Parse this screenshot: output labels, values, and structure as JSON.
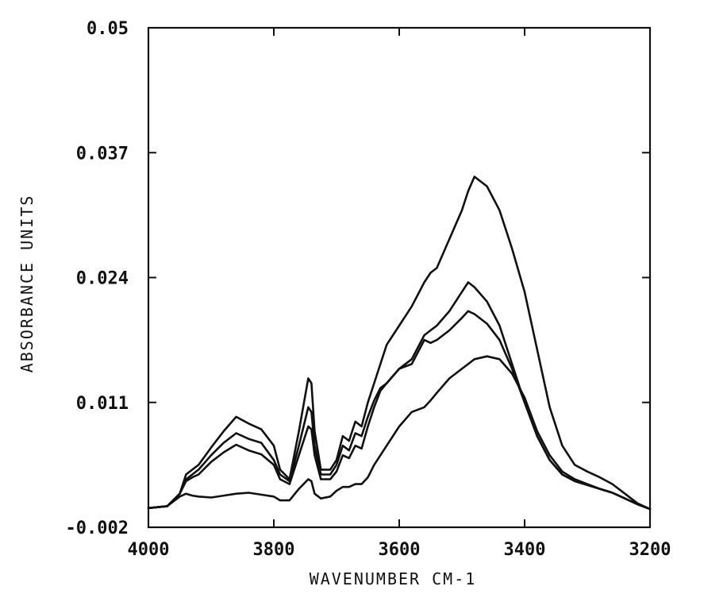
{
  "chart_data": {
    "type": "line",
    "title": "",
    "xlabel": "WAVENUMBER CM-1",
    "ylabel": "ABSORBANCE UNITS",
    "xlim": [
      4000,
      3200
    ],
    "ylim": [
      -0.002,
      0.05
    ],
    "x_reversed": true,
    "x_ticks": [
      4000,
      3800,
      3600,
      3400,
      3200
    ],
    "x_tick_labels": [
      "4000",
      "3800",
      "3600",
      "3400",
      "3200"
    ],
    "y_ticks": [
      -0.002,
      0.011,
      0.024,
      0.037,
      0.05
    ],
    "y_tick_labels": [
      "-0.002",
      "0.011",
      "0.024",
      "0.037",
      "0.05"
    ],
    "grid": false,
    "legend": "none",
    "series": [
      {
        "x": [
          4000,
          3970,
          3950,
          3940,
          3930,
          3920,
          3900,
          3880,
          3860,
          3840,
          3820,
          3800,
          3790,
          3775,
          3760,
          3745,
          3740,
          3735,
          3725,
          3710,
          3700,
          3690,
          3680,
          3670,
          3660,
          3650,
          3640,
          3630,
          3620,
          3600,
          3580,
          3560,
          3550,
          3540,
          3520,
          3500,
          3490,
          3480,
          3460,
          3440,
          3420,
          3400,
          3380,
          3360,
          3340,
          3320,
          3300,
          3280,
          3260,
          3240,
          3220,
          3200
        ],
        "y": [
          0.0,
          0.0002,
          0.0015,
          0.0035,
          0.004,
          0.0045,
          0.0063,
          0.008,
          0.0095,
          0.0088,
          0.0082,
          0.0065,
          0.004,
          0.003,
          0.008,
          0.0135,
          0.013,
          0.008,
          0.004,
          0.004,
          0.005,
          0.0075,
          0.007,
          0.009,
          0.0085,
          0.011,
          0.013,
          0.015,
          0.017,
          0.019,
          0.021,
          0.0235,
          0.0245,
          0.025,
          0.028,
          0.031,
          0.033,
          0.0345,
          0.0335,
          0.031,
          0.027,
          0.0225,
          0.0165,
          0.0105,
          0.0065,
          0.0045,
          0.0038,
          0.0032,
          0.0025,
          0.0015,
          0.0005,
          -0.0001
        ]
      },
      {
        "x": [
          4000,
          3970,
          3950,
          3940,
          3930,
          3920,
          3900,
          3880,
          3860,
          3840,
          3820,
          3800,
          3790,
          3775,
          3760,
          3745,
          3740,
          3735,
          3725,
          3710,
          3700,
          3690,
          3680,
          3670,
          3660,
          3650,
          3640,
          3630,
          3620,
          3600,
          3580,
          3560,
          3550,
          3540,
          3520,
          3500,
          3490,
          3480,
          3460,
          3440,
          3420,
          3400,
          3380,
          3360,
          3340,
          3320,
          3300,
          3280,
          3260,
          3240,
          3220,
          3200
        ],
        "y": [
          0.0,
          0.0002,
          0.0015,
          0.003,
          0.0035,
          0.004,
          0.0055,
          0.0068,
          0.0078,
          0.0072,
          0.0068,
          0.005,
          0.0035,
          0.0028,
          0.0065,
          0.0105,
          0.01,
          0.0065,
          0.0035,
          0.0035,
          0.0045,
          0.0065,
          0.006,
          0.0078,
          0.0075,
          0.0095,
          0.0112,
          0.0125,
          0.013,
          0.0145,
          0.0155,
          0.018,
          0.0185,
          0.019,
          0.0205,
          0.0225,
          0.0235,
          0.023,
          0.0215,
          0.019,
          0.015,
          0.011,
          0.0075,
          0.005,
          0.0035,
          0.0028,
          0.0024,
          0.002,
          0.0016,
          0.001,
          0.0004,
          -0.0001
        ]
      },
      {
        "x": [
          4000,
          3970,
          3950,
          3940,
          3930,
          3920,
          3900,
          3880,
          3860,
          3840,
          3820,
          3800,
          3790,
          3775,
          3760,
          3745,
          3740,
          3735,
          3725,
          3710,
          3700,
          3690,
          3680,
          3670,
          3660,
          3650,
          3640,
          3630,
          3620,
          3600,
          3580,
          3560,
          3550,
          3540,
          3520,
          3500,
          3490,
          3480,
          3460,
          3440,
          3420,
          3400,
          3380,
          3360,
          3340,
          3320,
          3300,
          3280,
          3260,
          3240,
          3220,
          3200
        ],
        "y": [
          0.0,
          0.0002,
          0.0015,
          0.0028,
          0.0032,
          0.0035,
          0.0048,
          0.0058,
          0.0066,
          0.006,
          0.0056,
          0.0045,
          0.003,
          0.0025,
          0.0055,
          0.0085,
          0.0082,
          0.0055,
          0.003,
          0.003,
          0.0038,
          0.0055,
          0.0052,
          0.0065,
          0.0062,
          0.0085,
          0.0105,
          0.0122,
          0.013,
          0.0145,
          0.015,
          0.0175,
          0.0172,
          0.0175,
          0.0185,
          0.0198,
          0.0205,
          0.0202,
          0.0192,
          0.0175,
          0.0145,
          0.011,
          0.0075,
          0.005,
          0.0035,
          0.0028,
          0.0024,
          0.002,
          0.0016,
          0.001,
          0.0004,
          -0.0001
        ]
      },
      {
        "x": [
          4000,
          3970,
          3950,
          3940,
          3930,
          3920,
          3900,
          3880,
          3860,
          3840,
          3820,
          3800,
          3790,
          3775,
          3760,
          3745,
          3740,
          3735,
          3725,
          3710,
          3700,
          3690,
          3680,
          3670,
          3660,
          3650,
          3640,
          3630,
          3620,
          3600,
          3580,
          3560,
          3550,
          3540,
          3520,
          3500,
          3490,
          3480,
          3460,
          3440,
          3420,
          3400,
          3380,
          3360,
          3340,
          3320,
          3300,
          3280,
          3260,
          3240,
          3220,
          3200
        ],
        "y": [
          0.0,
          0.0002,
          0.0012,
          0.0015,
          0.0013,
          0.0012,
          0.0011,
          0.0013,
          0.0015,
          0.0016,
          0.0014,
          0.0012,
          0.0008,
          0.0008,
          0.002,
          0.003,
          0.0028,
          0.0015,
          0.001,
          0.0012,
          0.0018,
          0.0022,
          0.0022,
          0.0025,
          0.0025,
          0.0032,
          0.0045,
          0.0055,
          0.0065,
          0.0085,
          0.01,
          0.0105,
          0.0112,
          0.012,
          0.0135,
          0.0145,
          0.015,
          0.0155,
          0.0158,
          0.0155,
          0.014,
          0.0115,
          0.008,
          0.0055,
          0.0038,
          0.003,
          0.0025,
          0.002,
          0.0016,
          0.001,
          0.0004,
          -0.0001
        ]
      }
    ]
  }
}
